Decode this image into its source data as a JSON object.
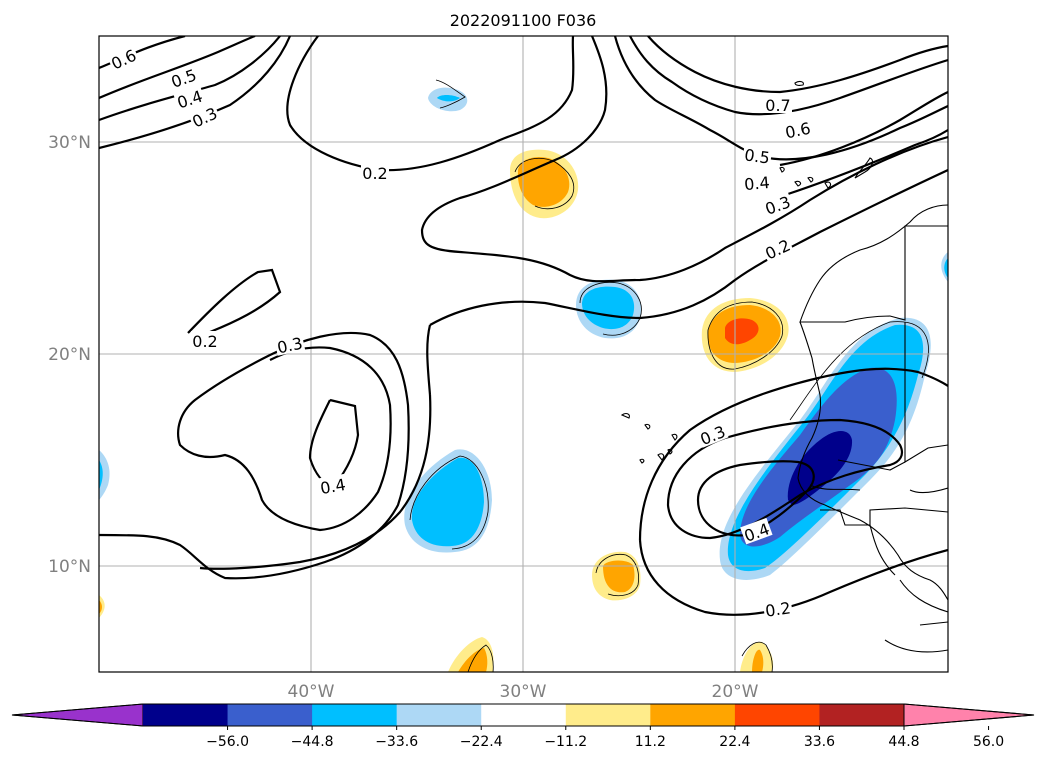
{
  "title": "2022091100 F036",
  "map": {
    "lat_labels": [
      "30°N",
      "20°N",
      "10°N"
    ],
    "lon_labels": [
      "40°W",
      "30°W",
      "20°W"
    ],
    "contour_labels": [
      "0.6",
      "0.5",
      "0.4",
      "0.3",
      "0.2",
      "0.2",
      "0.3",
      "0.4",
      "0.2",
      "0.7",
      "0.6",
      "0.5",
      "0.4",
      "0.3",
      "0.2",
      "0.3",
      "0.4",
      "0.2"
    ]
  },
  "colorbar": {
    "ticks": [
      "−56.0",
      "−44.8",
      "−33.6",
      "−22.4",
      "−11.2",
      "11.2",
      "22.4",
      "33.6",
      "44.8",
      "56.0"
    ],
    "colors": [
      "#9932cc",
      "#00008b",
      "#3a5fcd",
      "#00bfff",
      "#add8f5",
      "#ffffff",
      "#ffec8b",
      "#ffa500",
      "#ff4500",
      "#b22222",
      "#ff82ab"
    ]
  },
  "colors": {
    "dark_purple": "#9932cc",
    "navy": "#00008b",
    "royal_blue": "#3a5fcd",
    "deep_sky": "#00bfff",
    "light_blue": "#add8f5",
    "light_yellow": "#ffec8b",
    "orange": "#ffa500",
    "red_orange": "#ff4500",
    "firebrick": "#b22222",
    "pink": "#ff82ab"
  }
}
